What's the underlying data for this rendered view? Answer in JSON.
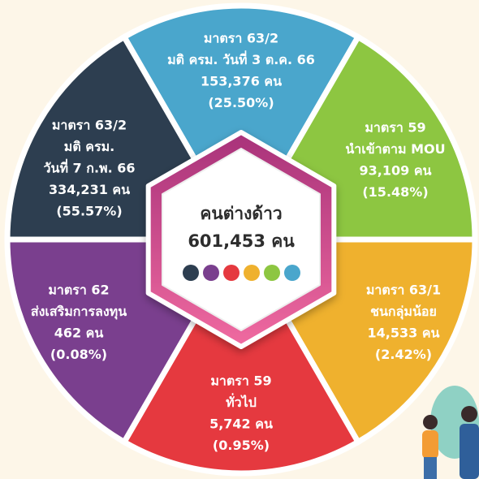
{
  "center": {
    "title": "คนต่างด้าว",
    "total": "601,453 คน"
  },
  "segments": [
    {
      "color": "#4aa6cc",
      "lines": [
        "มาตรา 63/2",
        "มติ ครม. วันที่ 3 ต.ค. 66",
        "153,376 คน",
        "(25.50%)"
      ]
    },
    {
      "color": "#8dc641",
      "lines": [
        "มาตรา 59",
        "นำเข้าตาม MOU",
        "93,109 คน",
        "(15.48%)"
      ]
    },
    {
      "color": "#efb12e",
      "lines": [
        "มาตรา 63/1",
        "ชนกลุ่มน้อย",
        "14,533 คน",
        "(2.42%)"
      ]
    },
    {
      "color": "#e5393f",
      "lines": [
        "มาตรา 59",
        "ทั่วไป",
        "5,742 คน",
        "(0.95%)"
      ]
    },
    {
      "color": "#7a3f8e",
      "lines": [
        "มาตรา 62",
        "ส่งเสริมการลงทุน",
        "462 คน",
        "(0.08%)"
      ]
    },
    {
      "color": "#2d3e50",
      "lines": [
        "มาตรา 63/2",
        "มติ ครม.",
        "วันที่ 7 ก.พ. 66",
        "334,231 คน",
        "(55.57%)"
      ]
    }
  ]
}
